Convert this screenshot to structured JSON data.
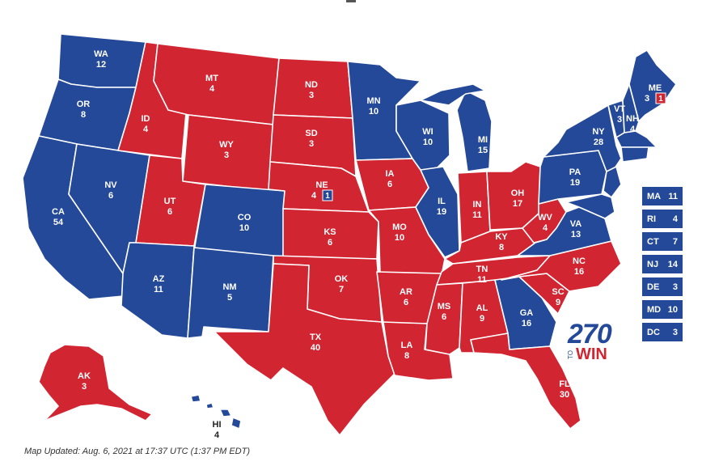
{
  "colors": {
    "democrat": "#244999",
    "republican": "#D22532"
  },
  "states": {
    "WA": {
      "abbr": "WA",
      "ev": "12",
      "party": "dem"
    },
    "OR": {
      "abbr": "OR",
      "ev": "8",
      "party": "dem"
    },
    "CA": {
      "abbr": "CA",
      "ev": "54",
      "party": "dem"
    },
    "NV": {
      "abbr": "NV",
      "ev": "6",
      "party": "dem"
    },
    "ID": {
      "abbr": "ID",
      "ev": "4",
      "party": "rep"
    },
    "MT": {
      "abbr": "MT",
      "ev": "4",
      "party": "rep"
    },
    "WY": {
      "abbr": "WY",
      "ev": "3",
      "party": "rep"
    },
    "UT": {
      "abbr": "UT",
      "ev": "6",
      "party": "rep"
    },
    "AZ": {
      "abbr": "AZ",
      "ev": "11",
      "party": "dem"
    },
    "CO": {
      "abbr": "CO",
      "ev": "10",
      "party": "dem"
    },
    "NM": {
      "abbr": "NM",
      "ev": "5",
      "party": "dem"
    },
    "ND": {
      "abbr": "ND",
      "ev": "3",
      "party": "rep"
    },
    "SD": {
      "abbr": "SD",
      "ev": "3",
      "party": "rep"
    },
    "NE": {
      "abbr": "NE",
      "ev": "4",
      "party": "rep",
      "split": "1"
    },
    "KS": {
      "abbr": "KS",
      "ev": "6",
      "party": "rep"
    },
    "OK": {
      "abbr": "OK",
      "ev": "7",
      "party": "rep"
    },
    "TX": {
      "abbr": "TX",
      "ev": "40",
      "party": "rep"
    },
    "MN": {
      "abbr": "MN",
      "ev": "10",
      "party": "dem"
    },
    "IA": {
      "abbr": "IA",
      "ev": "6",
      "party": "rep"
    },
    "MO": {
      "abbr": "MO",
      "ev": "10",
      "party": "rep"
    },
    "AR": {
      "abbr": "AR",
      "ev": "6",
      "party": "rep"
    },
    "LA": {
      "abbr": "LA",
      "ev": "8",
      "party": "rep"
    },
    "WI": {
      "abbr": "WI",
      "ev": "10",
      "party": "dem"
    },
    "IL": {
      "abbr": "IL",
      "ev": "19",
      "party": "dem"
    },
    "MI": {
      "abbr": "MI",
      "ev": "15",
      "party": "dem"
    },
    "IN": {
      "abbr": "IN",
      "ev": "11",
      "party": "rep"
    },
    "OH": {
      "abbr": "OH",
      "ev": "17",
      "party": "rep"
    },
    "KY": {
      "abbr": "KY",
      "ev": "8",
      "party": "rep"
    },
    "TN": {
      "abbr": "TN",
      "ev": "11",
      "party": "rep"
    },
    "MS": {
      "abbr": "MS",
      "ev": "6",
      "party": "rep"
    },
    "AL": {
      "abbr": "AL",
      "ev": "9",
      "party": "rep"
    },
    "GA": {
      "abbr": "GA",
      "ev": "16",
      "party": "dem"
    },
    "FL": {
      "abbr": "FL",
      "ev": "30",
      "party": "rep"
    },
    "SC": {
      "abbr": "SC",
      "ev": "9",
      "party": "rep"
    },
    "NC": {
      "abbr": "NC",
      "ev": "16",
      "party": "rep"
    },
    "VA": {
      "abbr": "VA",
      "ev": "13",
      "party": "dem"
    },
    "WV": {
      "abbr": "WV",
      "ev": "4",
      "party": "rep"
    },
    "PA": {
      "abbr": "PA",
      "ev": "19",
      "party": "dem"
    },
    "NY": {
      "abbr": "NY",
      "ev": "28",
      "party": "dem"
    },
    "VT": {
      "abbr": "VT",
      "ev": "3",
      "party": "dem"
    },
    "NH": {
      "abbr": "NH",
      "ev": "4",
      "party": "dem"
    },
    "ME": {
      "abbr": "ME",
      "ev": "3",
      "party": "dem",
      "split": "1"
    },
    "AK": {
      "abbr": "AK",
      "ev": "3",
      "party": "rep"
    },
    "HI": {
      "abbr": "HI",
      "ev": "4",
      "party": "dem"
    }
  },
  "small_states": [
    {
      "abbr": "MA",
      "ev": "11"
    },
    {
      "abbr": "RI",
      "ev": "4"
    },
    {
      "abbr": "CT",
      "ev": "7"
    },
    {
      "abbr": "NJ",
      "ev": "14"
    },
    {
      "abbr": "DE",
      "ev": "3"
    },
    {
      "abbr": "MD",
      "ev": "10"
    },
    {
      "abbr": "DC",
      "ev": "3"
    }
  ],
  "logo": {
    "number": "270",
    "to": "TO",
    "win": "WIN"
  },
  "updated_text": "Map Updated: Aug. 6, 2021 at 17:37 UTC (1:37 PM EDT)"
}
